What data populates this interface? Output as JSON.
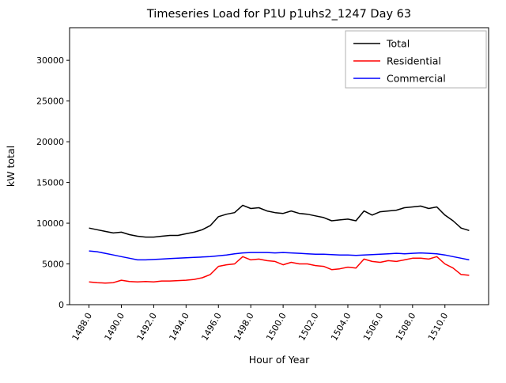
{
  "chart_data": {
    "type": "line",
    "title": "Timeseries Load for P1U p1uhs2_1247  Day 63",
    "xlabel": "Hour of Year",
    "ylabel": "kW total",
    "xlim": [
      1486.8,
      1512.7
    ],
    "ylim": [
      0,
      34000
    ],
    "xticks": [
      1488.0,
      1490.0,
      1492.0,
      1494.0,
      1496.0,
      1498.0,
      1500.0,
      1502.0,
      1504.0,
      1506.0,
      1508.0,
      1510.0
    ],
    "yticks": [
      0,
      5000,
      10000,
      15000,
      20000,
      25000,
      30000
    ],
    "grid": false,
    "legend_position": "upper right",
    "x": [
      1488.0,
      1488.5,
      1489.0,
      1489.5,
      1490.0,
      1490.5,
      1491.0,
      1491.5,
      1492.0,
      1492.5,
      1493.0,
      1493.5,
      1494.0,
      1494.5,
      1495.0,
      1495.5,
      1496.0,
      1496.5,
      1497.0,
      1497.5,
      1498.0,
      1498.5,
      1499.0,
      1499.5,
      1500.0,
      1500.5,
      1501.0,
      1501.5,
      1502.0,
      1502.5,
      1503.0,
      1503.5,
      1504.0,
      1504.5,
      1505.0,
      1505.5,
      1506.0,
      1506.5,
      1507.0,
      1507.5,
      1508.0,
      1508.5,
      1509.0,
      1509.5,
      1510.0,
      1510.5,
      1511.0,
      1511.5
    ],
    "series": [
      {
        "name": "Total",
        "color": "#000000",
        "values": [
          9400,
          9200,
          9000,
          8800,
          8900,
          8600,
          8400,
          8300,
          8300,
          8400,
          8500,
          8500,
          8700,
          8900,
          9200,
          9700,
          10800,
          11100,
          11300,
          12200,
          11800,
          11900,
          11500,
          11300,
          11200,
          11500,
          11200,
          11100,
          10900,
          10700,
          10300,
          10400,
          10500,
          10300,
          11500,
          11000,
          11400,
          11500,
          11600,
          11900,
          12000,
          12100,
          11800,
          12000,
          11000,
          10300,
          9400,
          9100
        ]
      },
      {
        "name": "Residential",
        "color": "#ff0000",
        "values": [
          2800,
          2700,
          2650,
          2700,
          3000,
          2850,
          2800,
          2850,
          2800,
          2900,
          2900,
          2950,
          3000,
          3100,
          3300,
          3700,
          4700,
          4900,
          5000,
          5900,
          5500,
          5600,
          5400,
          5300,
          4900,
          5200,
          5000,
          5000,
          4800,
          4700,
          4300,
          4400,
          4600,
          4500,
          5600,
          5300,
          5200,
          5400,
          5300,
          5500,
          5700,
          5700,
          5600,
          5900,
          5000,
          4500,
          3700,
          3600
        ]
      },
      {
        "name": "Commercial",
        "color": "#0000ff",
        "values": [
          6600,
          6500,
          6300,
          6100,
          5900,
          5700,
          5500,
          5500,
          5550,
          5600,
          5650,
          5700,
          5750,
          5800,
          5850,
          5900,
          6000,
          6100,
          6250,
          6350,
          6400,
          6400,
          6400,
          6350,
          6400,
          6350,
          6300,
          6250,
          6200,
          6200,
          6150,
          6100,
          6100,
          6050,
          6100,
          6150,
          6200,
          6250,
          6300,
          6250,
          6300,
          6350,
          6300,
          6250,
          6100,
          5900,
          5700,
          5500
        ]
      }
    ]
  }
}
